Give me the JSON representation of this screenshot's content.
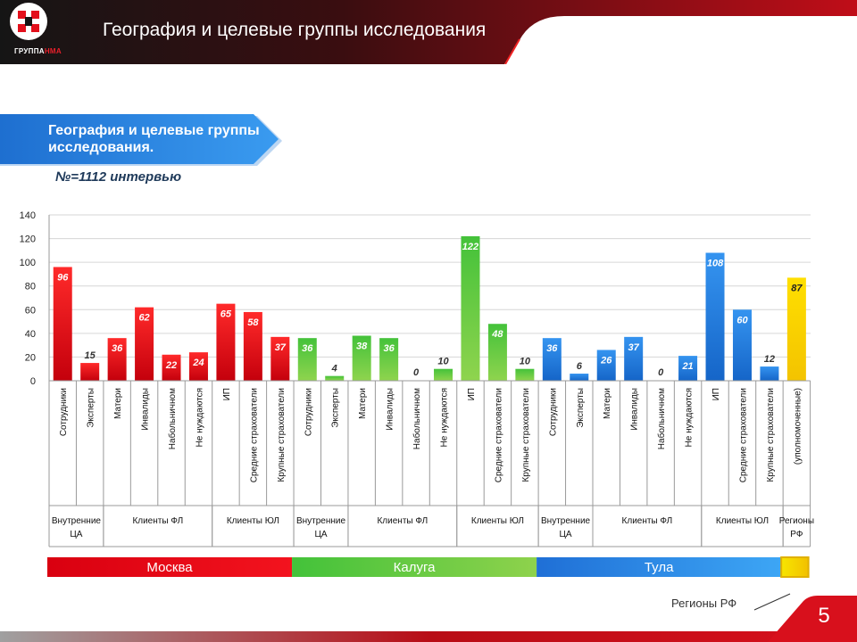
{
  "header": {
    "title": "География и целевые группы исследования",
    "logo_text_main": "ГРУППА",
    "logo_text_accent": "НМА"
  },
  "banner": {
    "title": "География и целевые группы исследования."
  },
  "subtitle": "№=1112 интервью",
  "footer": {
    "region_label": "Регионы РФ",
    "page_number": "5"
  },
  "colors": {
    "red": "#e3101c",
    "green": "#5cc83a",
    "blue": "#2478d8",
    "yellow": "#f6d20a",
    "dark": "#1b1b1b"
  },
  "chart_data": {
    "type": "bar",
    "ylim": [
      0,
      140
    ],
    "yticks": [
      "0",
      "20",
      "40",
      "60",
      "80",
      "100",
      "120",
      "140"
    ],
    "categories": [
      "Сотрудники",
      "Эксперты",
      "Матери",
      "Инвалиды",
      "Набольничном",
      "Не нуждаются",
      "ИП",
      "Средние страхователи",
      "Крупные страхователи",
      "Сотрудники",
      "Эксперты",
      "Матери",
      "Инвалиды",
      "Набольничном",
      "Не нуждаются",
      "ИП",
      "Средние страхователи",
      "Крупные страхователи",
      "Сотрудники",
      "Эксперты",
      "Матери",
      "Инвалиды",
      "Набольничном",
      "Не нуждаются",
      "ИП",
      "Средние страхователи",
      "Крупные страхователи",
      "(уполномоченные)"
    ],
    "values": [
      96,
      15,
      36,
      62,
      22,
      24,
      65,
      58,
      37,
      36,
      4,
      38,
      36,
      0,
      10,
      122,
      48,
      10,
      36,
      6,
      26,
      37,
      0,
      21,
      108,
      60,
      12,
      87
    ],
    "value_labels": [
      "96",
      "15",
      "36",
      "62",
      "22",
      "24",
      "65",
      "58",
      "37",
      "36",
      "4",
      "38",
      "36",
      "0",
      "10",
      "122",
      "48",
      "10",
      "36",
      "6",
      "26",
      "37",
      "0",
      "21",
      "108",
      "60",
      "12",
      "87"
    ],
    "regions": [
      "Москва",
      "Москва",
      "Москва",
      "Москва",
      "Москва",
      "Москва",
      "Москва",
      "Москва",
      "Москва",
      "Калуга",
      "Калуга",
      "Калуга",
      "Калуга",
      "Калуга",
      "Калуга",
      "Калуга",
      "Калуга",
      "Калуга",
      "Тула",
      "Тула",
      "Тула",
      "Тула",
      "Тула",
      "Тула",
      "Тула",
      "Тула",
      "Тула",
      "Регионы РФ"
    ],
    "groups": [
      {
        "label": "Внутренние ЦА",
        "start": 0,
        "end": 1
      },
      {
        "label": "Клиенты ФЛ",
        "start": 2,
        "end": 5
      },
      {
        "label": "Клиенты ЮЛ",
        "start": 6,
        "end": 8
      },
      {
        "label": "Внутренние ЦА",
        "start": 9,
        "end": 10
      },
      {
        "label": "Клиенты ФЛ",
        "start": 11,
        "end": 14
      },
      {
        "label": "Клиенты ЮЛ",
        "start": 15,
        "end": 17
      },
      {
        "label": "Внутренние ЦА",
        "start": 18,
        "end": 19
      },
      {
        "label": "Клиенты ФЛ",
        "start": 20,
        "end": 23
      },
      {
        "label": "Клиенты ЮЛ",
        "start": 24,
        "end": 26
      },
      {
        "label": "Регионы РФ",
        "start": 27,
        "end": 27
      }
    ],
    "region_bar": [
      {
        "label": "Москва",
        "start": 0,
        "end": 8,
        "color": "#e3101c"
      },
      {
        "label": "Калуга",
        "start": 9,
        "end": 17,
        "color": "#5cc83a"
      },
      {
        "label": "Тула",
        "start": 18,
        "end": 26,
        "color": "#2478d8"
      },
      {
        "label": "",
        "start": 27,
        "end": 27,
        "color": "#f6d20a"
      }
    ]
  }
}
